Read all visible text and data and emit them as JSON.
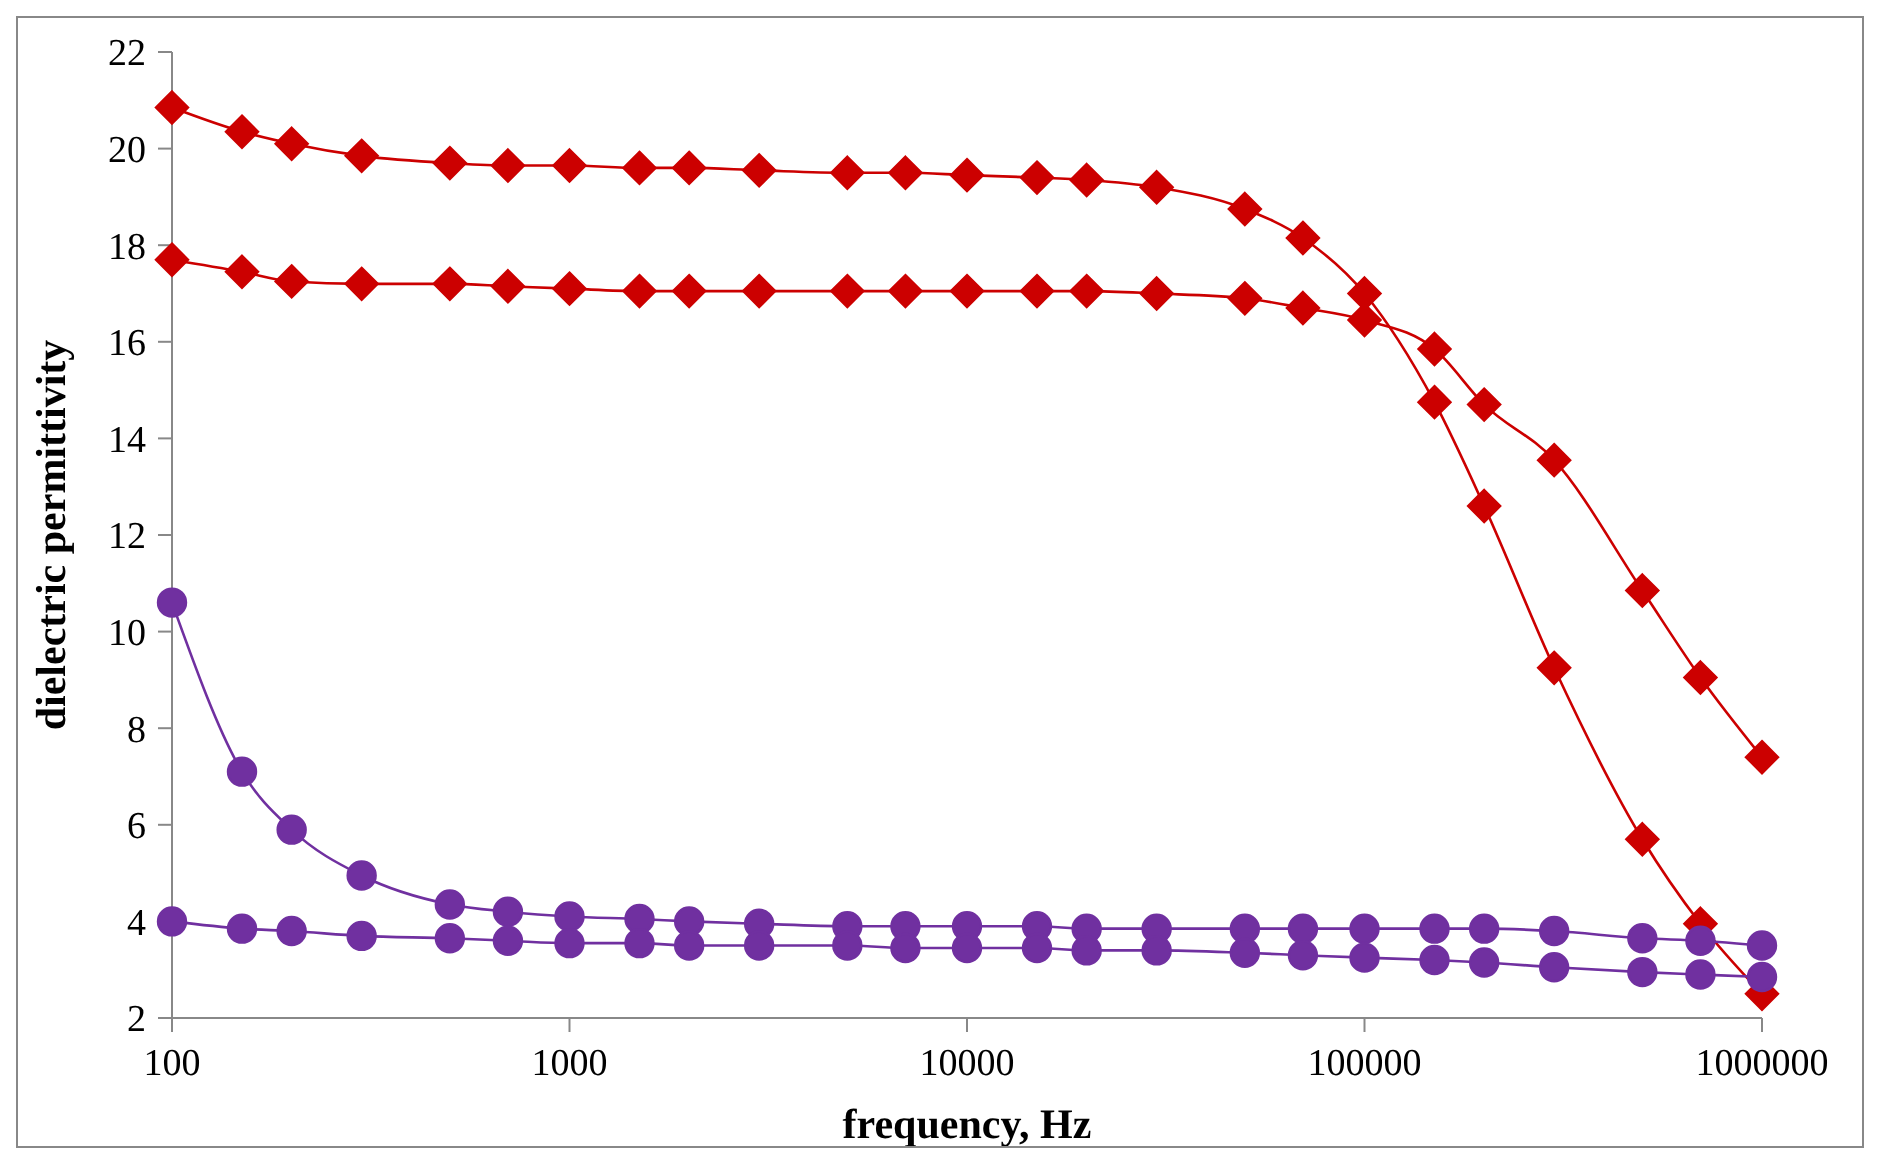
{
  "chart_data": {
    "type": "line",
    "xlabel": "frequency, Hz",
    "ylabel": "dielectric permittivity",
    "x": [
      100,
      150,
      200,
      300,
      500,
      700,
      1000,
      1500,
      2000,
      3000,
      5000,
      7000,
      10000,
      15000,
      20000,
      30000,
      50000,
      70000,
      100000,
      150000,
      200000,
      300000,
      500000,
      700000,
      1000000
    ],
    "series": [
      {
        "color": "#cc0000",
        "marker": "diamond",
        "values": [
          20.85,
          20.35,
          20.1,
          19.85,
          19.7,
          19.65,
          19.65,
          19.6,
          19.6,
          19.55,
          19.5,
          19.5,
          19.45,
          19.4,
          19.35,
          19.2,
          18.75,
          18.15,
          17.0,
          14.75,
          12.6,
          9.25,
          5.7,
          3.95,
          2.5
        ]
      },
      {
        "color": "#cc0000",
        "marker": "diamond",
        "values": [
          17.7,
          17.45,
          17.25,
          17.2,
          17.2,
          17.15,
          17.1,
          17.05,
          17.05,
          17.05,
          17.05,
          17.05,
          17.05,
          17.05,
          17.05,
          17.0,
          16.9,
          16.7,
          16.45,
          15.85,
          14.7,
          13.55,
          10.85,
          9.05,
          7.4
        ]
      },
      {
        "color": "#7030a0",
        "marker": "circle",
        "values": [
          10.6,
          7.1,
          5.9,
          4.95,
          4.35,
          4.2,
          4.1,
          4.05,
          4.0,
          3.95,
          3.9,
          3.9,
          3.9,
          3.9,
          3.85,
          3.85,
          3.85,
          3.85,
          3.85,
          3.85,
          3.85,
          3.8,
          3.65,
          3.6,
          3.5
        ]
      },
      {
        "color": "#7030a0",
        "marker": "circle",
        "values": [
          4.0,
          3.85,
          3.8,
          3.7,
          3.65,
          3.6,
          3.55,
          3.55,
          3.5,
          3.5,
          3.5,
          3.45,
          3.45,
          3.45,
          3.4,
          3.4,
          3.35,
          3.3,
          3.25,
          3.2,
          3.15,
          3.05,
          2.95,
          2.9,
          2.85
        ]
      }
    ],
    "log": "x",
    "xlim": [
      100,
      1000000
    ],
    "xticks": [
      100,
      1000,
      10000,
      100000,
      1000000
    ],
    "ylim": [
      2,
      22
    ],
    "yticks": [
      2,
      4,
      6,
      8,
      10,
      12,
      14,
      16,
      18,
      20,
      22
    ],
    "grid": false,
    "legend": false,
    "line_style": "solid"
  }
}
